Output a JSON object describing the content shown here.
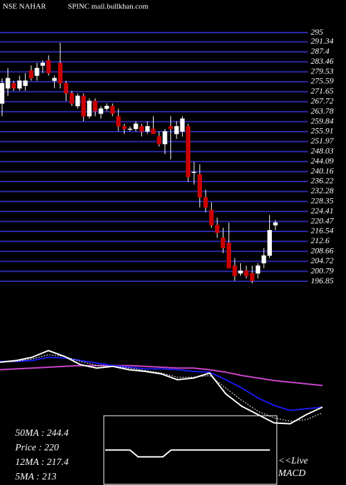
{
  "chart_data": {
    "type": "candlestick",
    "title": "NSE NAHAR",
    "subtitle": "SPINC mail.bullkhan.com",
    "ylim": [
      196.85,
      295
    ],
    "yticks": [
      295,
      291.34,
      287.4,
      283.46,
      279.53,
      275.59,
      271.65,
      267.72,
      263.78,
      259.84,
      255.91,
      251.97,
      248.03,
      244.09,
      240.16,
      236.22,
      232.28,
      228.35,
      224.41,
      220.47,
      216.54,
      212.6,
      208.66,
      204.72,
      200.79,
      196.85
    ],
    "grid": true,
    "grid_color": "#2a2aa8",
    "up_color": "#ffffff",
    "down_color": "#cc0000",
    "open": [
      267,
      273,
      275,
      273,
      274,
      280,
      278,
      282,
      284,
      276,
      283,
      275,
      271,
      266,
      270,
      262,
      268,
      263,
      265,
      266,
      262,
      258,
      257,
      257,
      258,
      256,
      257,
      254,
      251,
      258,
      255,
      256,
      258,
      240,
      239,
      230,
      225,
      219,
      214,
      212,
      203,
      200,
      201,
      200,
      200,
      204,
      207,
      219
    ],
    "high": [
      277,
      281,
      276,
      278,
      279,
      282,
      283,
      284,
      286,
      278,
      291,
      276,
      272,
      271,
      271,
      269,
      269,
      266,
      267,
      267,
      265,
      259,
      258,
      260,
      259,
      260,
      262,
      256,
      257,
      262,
      260,
      262,
      259,
      244,
      243,
      233,
      228,
      222,
      218,
      220,
      206,
      204,
      203,
      203,
      204,
      210,
      223,
      221
    ],
    "low": [
      262,
      270,
      272,
      272,
      272,
      276,
      276,
      279,
      278,
      273,
      273,
      268,
      266,
      265,
      260,
      261,
      262,
      261,
      264,
      262,
      256,
      255,
      256,
      256,
      254,
      255,
      255,
      250,
      247,
      245,
      253,
      254,
      236,
      235,
      226,
      224,
      218,
      214,
      208,
      202,
      197,
      199,
      198,
      196,
      198,
      202,
      206,
      217
    ],
    "close": [
      275,
      277,
      273,
      276,
      276,
      277,
      281,
      283,
      279,
      277,
      275,
      271,
      267,
      270,
      262,
      268,
      264,
      265,
      266,
      263,
      258,
      257,
      257,
      259,
      256,
      258,
      255,
      251,
      256,
      257,
      258,
      261,
      238,
      240,
      230,
      226,
      219,
      216,
      210,
      202,
      199,
      201,
      199,
      197,
      203,
      207,
      217,
      220
    ],
    "indicators": {
      "ylim": [
        0,
        100
      ],
      "series": [
        {
          "color": "#cc44cc",
          "values": [
            72,
            73,
            74,
            75,
            76,
            77,
            77,
            77,
            77,
            76,
            75,
            74,
            74,
            72,
            69,
            65,
            62,
            59,
            57,
            55,
            53
          ]
        },
        {
          "color": "#1a1aee",
          "values": [
            82,
            82,
            83,
            87,
            86,
            83,
            80,
            77,
            75,
            73,
            73,
            72,
            70,
            69,
            60,
            50,
            38,
            29,
            23,
            25,
            27
          ]
        },
        {
          "color": "#ffffff",
          "dash": true,
          "values": [
            81,
            82,
            85,
            90,
            88,
            82,
            77,
            76,
            74,
            71,
            68,
            63,
            63,
            65,
            50,
            35,
            22,
            14,
            10,
            12,
            20
          ]
        },
        {
          "color": "#ffffff",
          "values": [
            81,
            83,
            87,
            95,
            88,
            78,
            74,
            76,
            72,
            70,
            67,
            60,
            62,
            68,
            43,
            28,
            18,
            8,
            7,
            18,
            27
          ]
        }
      ]
    },
    "macd": {
      "ylim": [
        -10,
        10
      ],
      "values": [
        0,
        0,
        0,
        0,
        -2,
        -2,
        -2,
        -2,
        0,
        0,
        0,
        0,
        0,
        0,
        0,
        0,
        0,
        0,
        0,
        0,
        0
      ]
    },
    "stats": [
      "50MA : 244.4",
      "Price   : 220",
      "12MA : 217.4",
      "5MA : 213"
    ],
    "notes": [
      "<<Live",
      "MACD"
    ]
  }
}
